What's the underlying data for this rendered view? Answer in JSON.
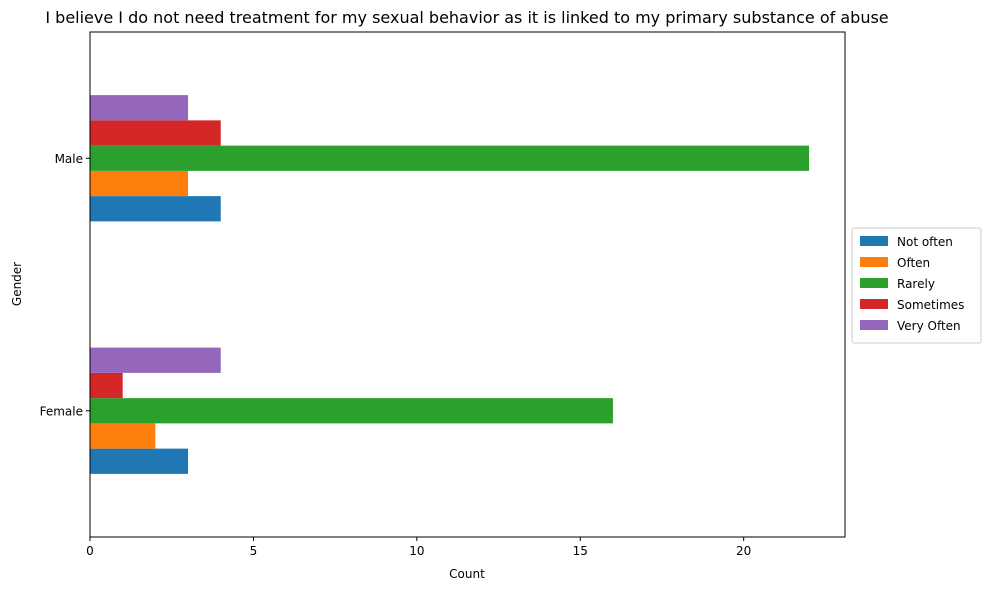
{
  "chart_data": {
    "type": "bar",
    "orientation": "horizontal",
    "title": "I believe I do not need treatment for my sexual behavior as it is linked to my primary substance of abuse",
    "xlabel": "Count",
    "ylabel": "Gender",
    "categories": [
      "Female",
      "Male"
    ],
    "xlim": [
      0,
      23.1
    ],
    "xticks": [
      0,
      5,
      10,
      15,
      20
    ],
    "grid": false,
    "legend_position": "center-right",
    "series": [
      {
        "name": "Not often",
        "color": "#1f77b4",
        "values": [
          3,
          4
        ]
      },
      {
        "name": "Often",
        "color": "#ff7f0e",
        "values": [
          2,
          3
        ]
      },
      {
        "name": "Rarely",
        "color": "#2ca02c",
        "values": [
          16,
          22
        ]
      },
      {
        "name": "Sometimes",
        "color": "#d62728",
        "values": [
          1,
          4
        ]
      },
      {
        "name": "Very Often",
        "color": "#9467bd",
        "values": [
          4,
          3
        ]
      }
    ]
  }
}
